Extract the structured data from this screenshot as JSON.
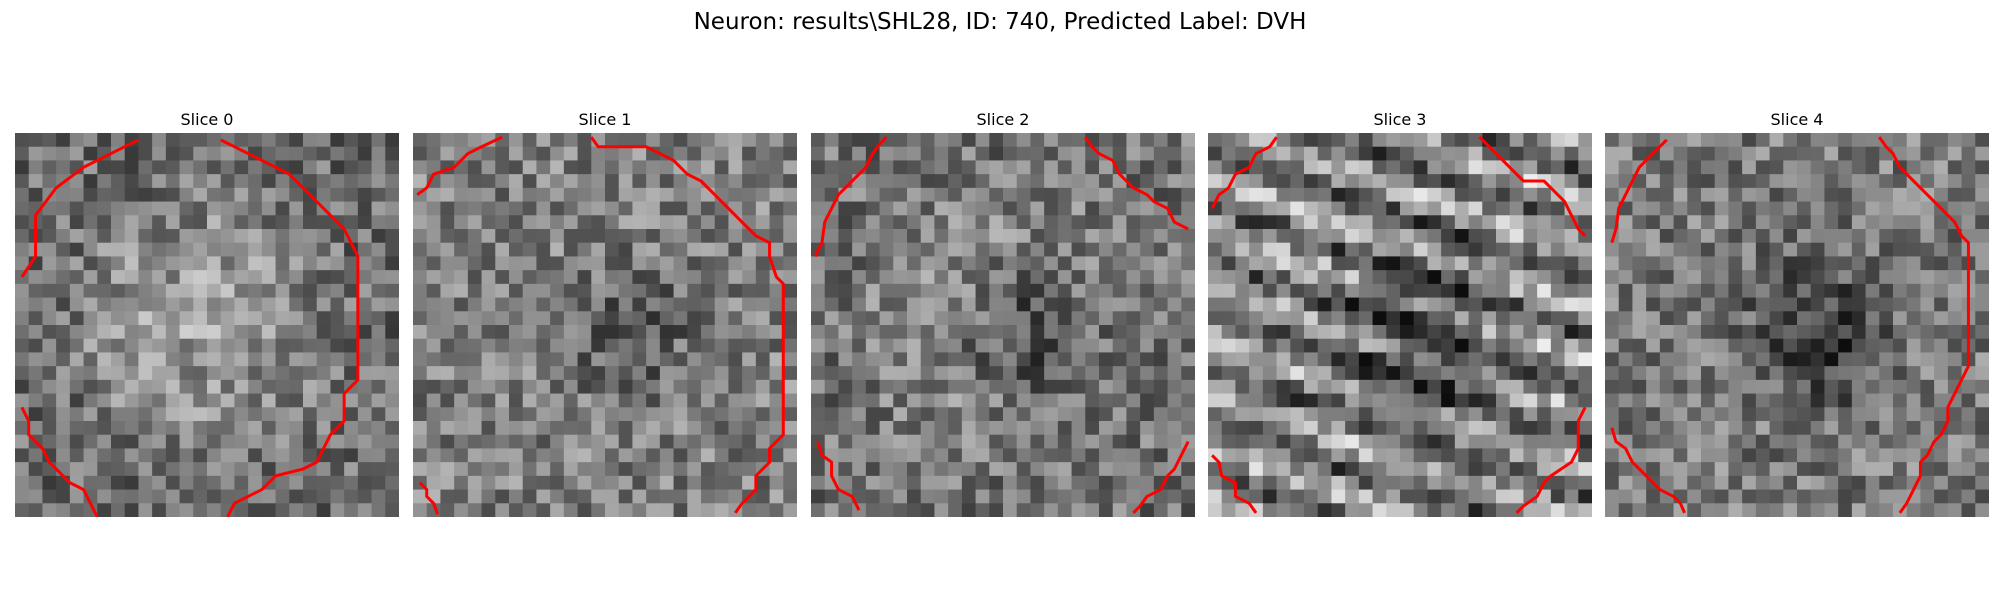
{
  "figure": {
    "title": "Neuron: results\\SHL28, ID: 740, Predicted Label: DVH",
    "contour_color": "#ff0000",
    "colormap": "grayscale",
    "grid_size": 28
  },
  "panels": [
    {
      "title": "Slice 0",
      "seed": 11,
      "base": 0.42,
      "blob_strength": 0.32,
      "dark_strength": 0.1,
      "stripe_strength": 0.0
    },
    {
      "title": "Slice 1",
      "seed": 23,
      "base": 0.5,
      "blob_strength": 0.06,
      "dark_strength": 0.2,
      "stripe_strength": 0.0
    },
    {
      "title": "Slice 2",
      "seed": 37,
      "base": 0.45,
      "blob_strength": 0.28,
      "dark_strength": 0.38,
      "stripe_strength": 0.0
    },
    {
      "title": "Slice 3",
      "seed": 53,
      "base": 0.52,
      "blob_strength": 0.04,
      "dark_strength": 0.3,
      "stripe_strength": 0.22
    },
    {
      "title": "Slice 4",
      "seed": 71,
      "base": 0.48,
      "blob_strength": 0.04,
      "dark_strength": 0.3,
      "stripe_strength": 0.0
    }
  ]
}
